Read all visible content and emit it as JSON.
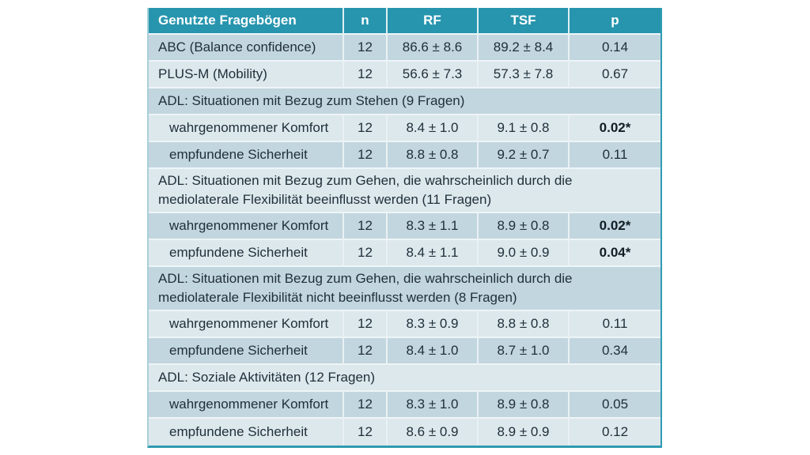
{
  "table": {
    "accent_color": "#2795ae",
    "row_dark_color": "#c2d6df",
    "row_light_color": "#dde8ec",
    "columns": [
      "Genutzte Fragebögen",
      "n",
      "RF",
      "TSF",
      "p"
    ],
    "rows": [
      {
        "type": "data",
        "shade": "dark",
        "indent": false,
        "label": "ABC (Balance confidence)",
        "n": "12",
        "rf": "86.6 ± 8.6",
        "tsf": "89.2 ± 8.4",
        "p": "0.14",
        "p_bold": false
      },
      {
        "type": "data",
        "shade": "light",
        "indent": false,
        "label": "PLUS-M (Mobility)",
        "n": "12",
        "rf": "56.6 ± 7.3",
        "tsf": "57.3 ± 7.8",
        "p": "0.67",
        "p_bold": false
      },
      {
        "type": "section",
        "shade": "dark",
        "label": "ADL: Situationen mit Bezug zum Stehen (9 Fragen)"
      },
      {
        "type": "data",
        "shade": "light",
        "indent": true,
        "label": "wahrgenommener Komfort",
        "n": "12",
        "rf": "8.4 ± 1.0",
        "tsf": "9.1 ± 0.8",
        "p": "0.02*",
        "p_bold": true
      },
      {
        "type": "data",
        "shade": "dark",
        "indent": true,
        "label": "empfundene Sicherheit",
        "n": "12",
        "rf": "8.8 ± 0.8",
        "tsf": "9.2 ± 0.7",
        "p": "0.11",
        "p_bold": false
      },
      {
        "type": "section",
        "shade": "light",
        "label": "ADL: Situationen mit Bezug zum Gehen, die wahrscheinlich durch die mediolaterale Flexibilität beeinflusst werden (11 Fragen)"
      },
      {
        "type": "data",
        "shade": "dark",
        "indent": true,
        "label": "wahrgenommener Komfort",
        "n": "12",
        "rf": "8.3 ± 1.1",
        "tsf": "8.9 ± 0.8",
        "p": "0.02*",
        "p_bold": true
      },
      {
        "type": "data",
        "shade": "light",
        "indent": true,
        "label": "empfundene Sicherheit",
        "n": "12",
        "rf": "8.4 ± 1.1",
        "tsf": "9.0 ± 0.9",
        "p": "0.04*",
        "p_bold": true
      },
      {
        "type": "section",
        "shade": "dark",
        "label": "ADL: Situationen mit Bezug zum Gehen, die wahrscheinlich durch die mediolaterale Flexibilität nicht beeinflusst werden (8 Fragen)"
      },
      {
        "type": "data",
        "shade": "light",
        "indent": true,
        "label": "wahrgenommener Komfort",
        "n": "12",
        "rf": "8.3 ± 0.9",
        "tsf": "8.8 ± 0.8",
        "p": "0.11",
        "p_bold": false
      },
      {
        "type": "data",
        "shade": "dark",
        "indent": true,
        "label": "empfundene Sicherheit",
        "n": "12",
        "rf": "8.4 ± 1.0",
        "tsf": "8.7 ± 1.0",
        "p": "0.34",
        "p_bold": false
      },
      {
        "type": "section",
        "shade": "light",
        "label": "ADL: Soziale Aktivitäten (12 Fragen)"
      },
      {
        "type": "data",
        "shade": "dark",
        "indent": true,
        "label": "wahrgenommener Komfort",
        "n": "12",
        "rf": "8.3 ± 1.0",
        "tsf": "8.9 ± 0.8",
        "p": "0.05",
        "p_bold": false
      },
      {
        "type": "data",
        "shade": "light",
        "indent": true,
        "label": "empfundene Sicherheit",
        "n": "12",
        "rf": "8.6 ± 0.9",
        "tsf": "8.9 ± 0.9",
        "p": "0.12",
        "p_bold": false
      }
    ]
  }
}
